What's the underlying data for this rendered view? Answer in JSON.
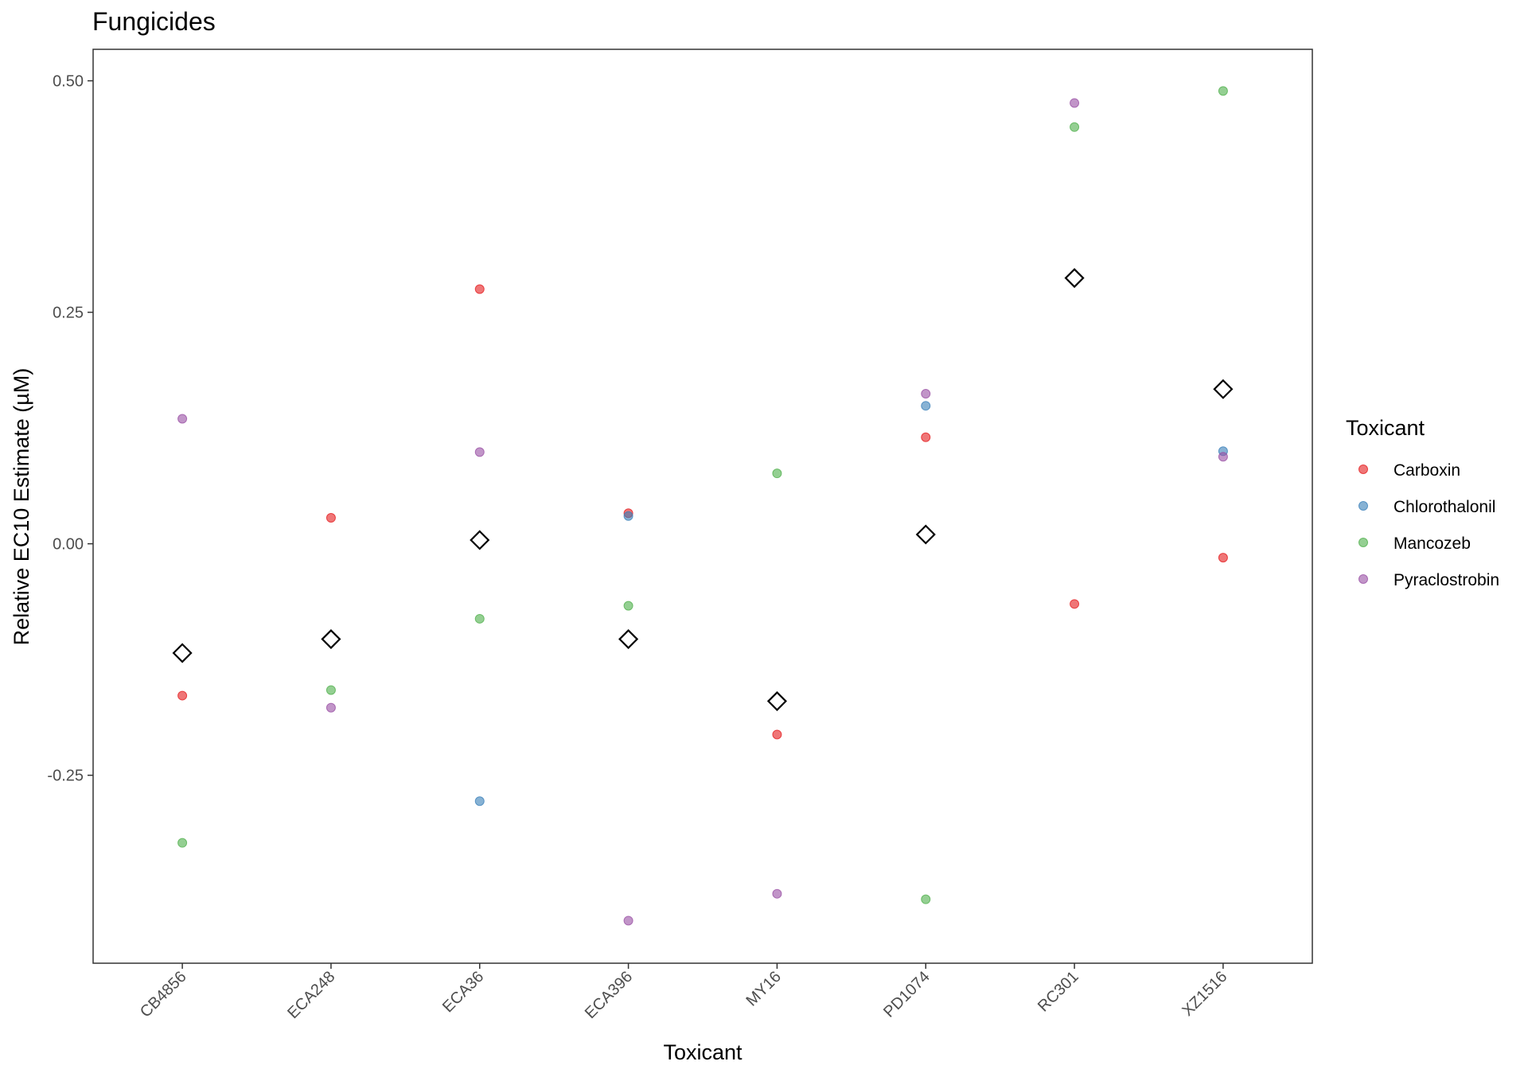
{
  "chart_data": {
    "type": "scatter",
    "title": "Fungicides",
    "xlabel": "Toxicant",
    "ylabel": "Relative EC10 Estimate (µM)",
    "categories": [
      "CB4856",
      "ECA248",
      "ECA36",
      "ECA396",
      "MY16",
      "PD1074",
      "RC301",
      "XZ1516"
    ],
    "ylim": [
      -0.453,
      0.534
    ],
    "yticks": [
      -0.25,
      0.0,
      0.25,
      0.5
    ],
    "ytick_labels": [
      "-0.25",
      "0.00",
      "0.25",
      "0.50"
    ],
    "grid": false,
    "legend": {
      "title": "Toxicant",
      "position": "right"
    },
    "series": [
      {
        "name": "Carboxin",
        "color": "#E41A1C",
        "values": [
          -0.164,
          0.028,
          0.275,
          0.033,
          -0.206,
          0.115,
          -0.065,
          -0.015
        ]
      },
      {
        "name": "Chlorothalonil",
        "color": "#377EB8",
        "values": [
          null,
          null,
          -0.278,
          0.03,
          null,
          0.149,
          null,
          0.1
        ]
      },
      {
        "name": "Mancozeb",
        "color": "#4DAF4A",
        "values": [
          -0.323,
          -0.158,
          -0.081,
          -0.067,
          0.076,
          -0.384,
          0.45,
          0.489
        ]
      },
      {
        "name": "Pyraclostrobin",
        "color": "#984EA3",
        "values": [
          0.135,
          -0.177,
          0.099,
          -0.407,
          -0.378,
          0.162,
          0.476,
          0.094
        ]
      }
    ],
    "mean_markers": {
      "shape": "open-diamond",
      "values": [
        -0.118,
        -0.103,
        0.004,
        -0.103,
        -0.17,
        0.01,
        0.287,
        0.167
      ]
    }
  }
}
